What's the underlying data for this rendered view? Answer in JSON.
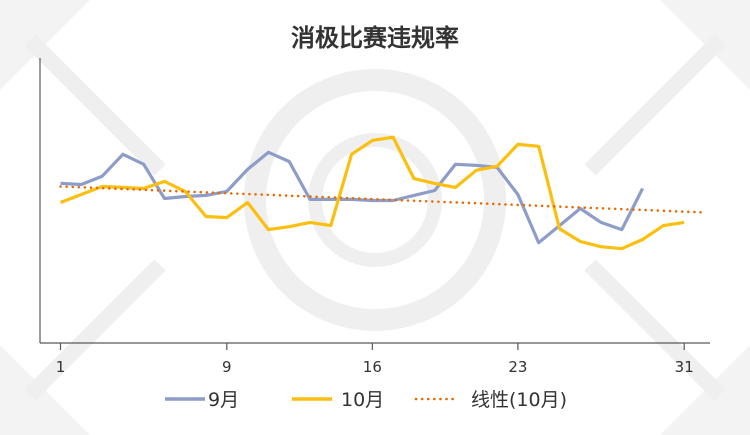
{
  "chart_data": {
    "type": "line",
    "title": "消极比赛违规率",
    "xlabel": "",
    "ylabel": "",
    "x_ticks": [
      "1",
      "9",
      "16",
      "23",
      "31"
    ],
    "x_tick_values": [
      1,
      9,
      16,
      23,
      31
    ],
    "xlim": [
      0,
      32
    ],
    "ylim": [
      0,
      100
    ],
    "y_axis_labels_shown": false,
    "grid": false,
    "legend_position": "bottom",
    "series": [
      {
        "name": "9月",
        "color": "#8e9dc8",
        "style": "solid",
        "x": [
          1,
          2,
          3,
          4,
          5,
          6,
          7,
          8,
          9,
          10,
          11,
          12,
          13,
          14,
          15,
          16,
          17,
          18,
          19,
          20,
          21,
          22,
          23,
          24,
          25,
          26,
          27,
          28,
          29,
          30
        ],
        "values": [
          56.0,
          55.6,
          58.5,
          66.2,
          62.7,
          50.7,
          51.4,
          51.8,
          53.2,
          60.9,
          66.9,
          63.7,
          50.4,
          50.4,
          50.4,
          50.0,
          50.0,
          51.8,
          53.5,
          62.7,
          62.3,
          61.6,
          52.1,
          35.2,
          41.2,
          47.2,
          42.3,
          39.8,
          54.2,
          null
        ]
      },
      {
        "name": "10月",
        "color": "#fbbf0f",
        "style": "solid",
        "x": [
          1,
          2,
          3,
          4,
          5,
          6,
          7,
          8,
          9,
          10,
          11,
          12,
          13,
          14,
          15,
          16,
          17,
          18,
          19,
          20,
          21,
          22,
          23,
          24,
          25,
          26,
          27,
          28,
          29,
          30,
          31,
          32
        ],
        "values": [
          49.3,
          52.1,
          54.9,
          54.6,
          54.2,
          56.7,
          53.2,
          44.4,
          44.0,
          49.3,
          39.8,
          40.8,
          42.3,
          41.2,
          66.2,
          71.1,
          72.2,
          57.7,
          56.0,
          54.6,
          60.6,
          62.0,
          69.7,
          69.0,
          40.1,
          35.6,
          33.8,
          33.1,
          36.3,
          41.2,
          42.3,
          null
        ]
      },
      {
        "name": "线性(10月)",
        "color": "#e36c09",
        "style": "dotted",
        "x": [
          1,
          32
        ],
        "values": [
          54.9,
          45.8
        ]
      }
    ]
  }
}
